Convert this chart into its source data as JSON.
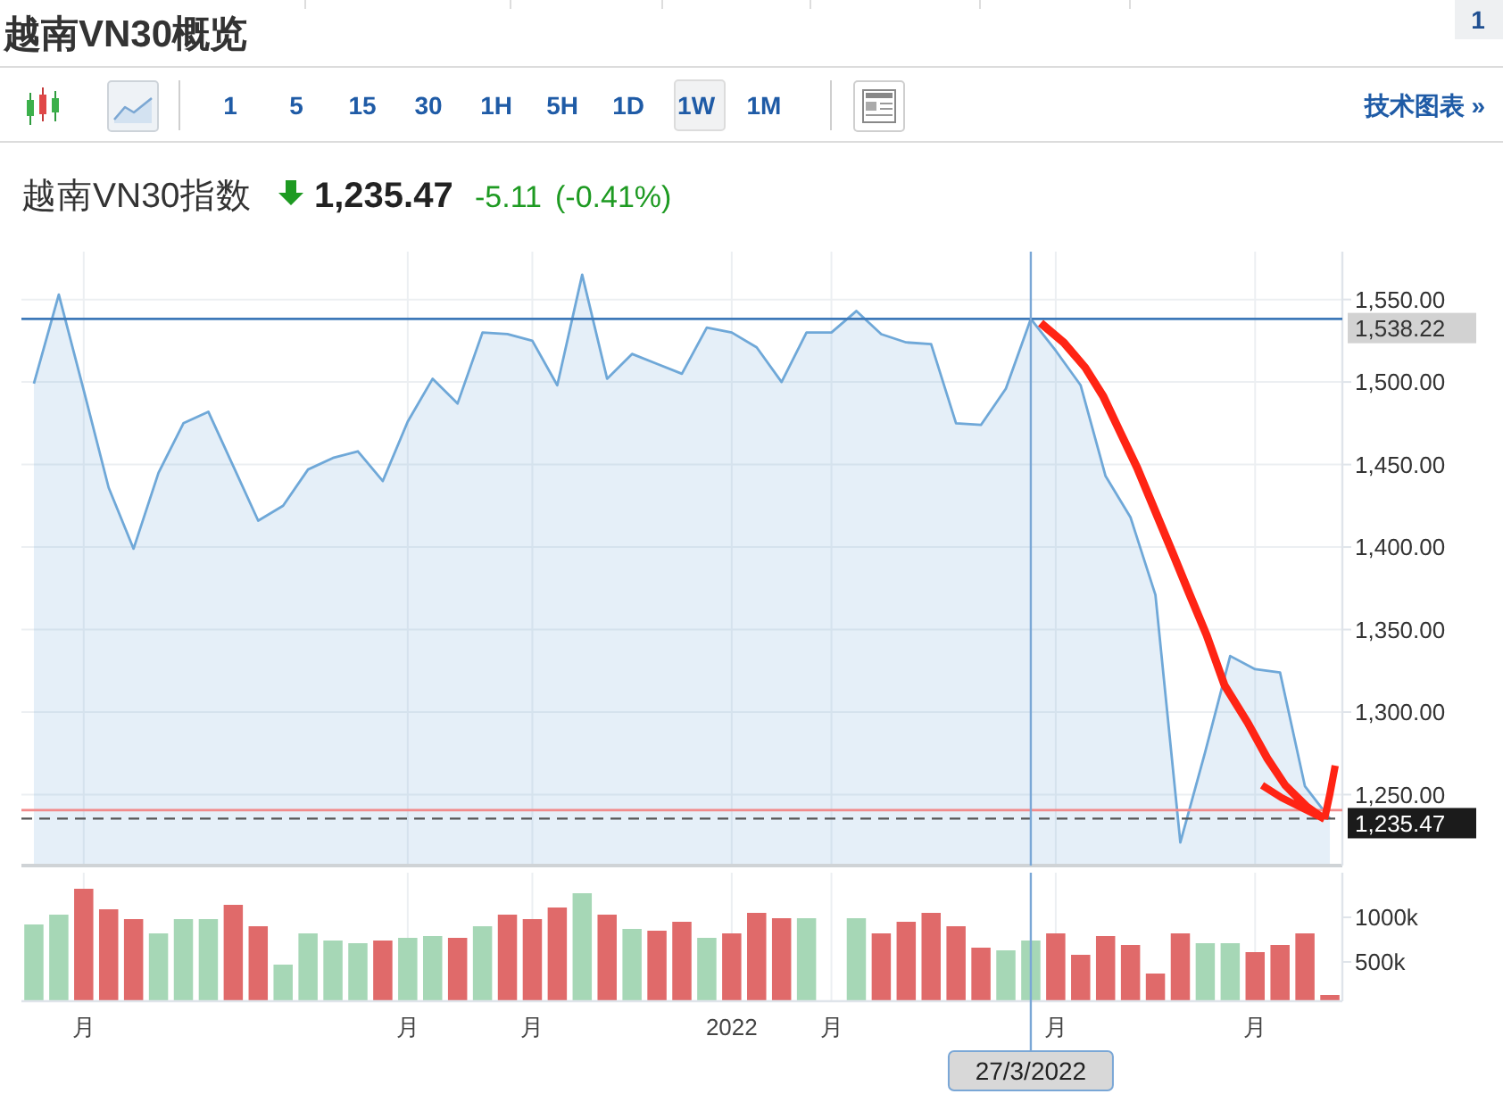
{
  "chart_data": [
    {
      "type": "area",
      "title": "越南VN30概览",
      "subtitle": "越南VN30指数",
      "annotations": [
        "1",
        "1 5 15 30 1H 5H 1D 1W 1M",
        "技术图表 »",
        "1,235.47",
        "-5.11",
        "(-0.41%)"
      ],
      "categories": [
        null,
        null,
        "月",
        null,
        null,
        null,
        null,
        null,
        null,
        null,
        null,
        null,
        null,
        null,
        null,
        "月",
        null,
        null,
        null,
        null,
        "月",
        null,
        null,
        null,
        null,
        null,
        null,
        null,
        "2022",
        null,
        null,
        null,
        "月",
        null,
        null,
        null,
        null,
        null,
        null,
        null,
        "27/3/2022",
        "月",
        null,
        null,
        null,
        null,
        null,
        null,
        null,
        "月",
        null,
        null,
        null
      ],
      "values": [
        1499,
        1553,
        1495,
        1436,
        1399,
        1445,
        1475,
        1482,
        1449,
        1416,
        1425,
        1447,
        1454,
        1458,
        1440,
        1476,
        1502,
        1487,
        1530,
        1529,
        1525,
        1498,
        1565,
        1502,
        1517,
        1511,
        1505,
        1533,
        1530,
        1521,
        1500,
        1530,
        1530,
        1543,
        1529,
        1524,
        1523,
        1475,
        1474,
        1496,
        1538.22,
        1519,
        1498,
        1443,
        1418,
        1371,
        1221,
        1276,
        1334,
        1326,
        1324,
        1255,
        1235.47
      ],
      "color": "#6fa8d8",
      "ylim": [
        1207,
        1579
      ],
      "yticks": [
        {
          "value": 1250,
          "label": "1,250.00"
        },
        {
          "value": 1300,
          "label": "1,300.00"
        },
        {
          "value": 1350,
          "label": "1,350.00"
        },
        {
          "value": 1400,
          "label": "1,400.00"
        },
        {
          "value": 1450,
          "label": "1,450.00"
        },
        {
          "value": 1500,
          "label": "1,500.00"
        },
        {
          "value": 1550,
          "label": "1,550.00"
        }
      ],
      "grid": true,
      "tick_labels": "y",
      "ref_lines": [
        {
          "axis": "y",
          "value": 1538.22,
          "label": "1,538.22",
          "color": "#3d78b8"
        },
        {
          "axis": "y",
          "value": 1240.58,
          "color": "#f28b8b"
        },
        {
          "axis": "y",
          "value": 1235.47,
          "label": "1,235.47",
          "color": "#555555",
          "line_style": "dashed"
        },
        {
          "axis": "x",
          "value": "27/3/2022",
          "color": "#7aa7d6"
        }
      ]
    },
    {
      "type": "bar",
      "categories": [
        null,
        null,
        "月",
        null,
        null,
        null,
        null,
        null,
        null,
        null,
        null,
        null,
        null,
        null,
        null,
        "月",
        null,
        null,
        null,
        null,
        "月",
        null,
        null,
        null,
        null,
        null,
        null,
        null,
        "2022",
        null,
        null,
        null,
        "月",
        null,
        null,
        null,
        null,
        null,
        null,
        null,
        "27/3/2022",
        "月",
        null,
        null,
        null,
        null,
        null,
        null,
        null,
        "月",
        null,
        null,
        null
      ],
      "values": [
        920000,
        1030000,
        1320000,
        1090000,
        980000,
        820000,
        980000,
        980000,
        1140000,
        900000,
        470000,
        820000,
        740000,
        710000,
        740000,
        770000,
        790000,
        770000,
        900000,
        1030000,
        980000,
        1110000,
        1270000,
        1030000,
        870000,
        850000,
        950000,
        770000,
        820000,
        1050000,
        990000,
        990000,
        null,
        990000,
        820000,
        950000,
        1050000,
        900000,
        660000,
        630000,
        740000,
        820000,
        580000,
        790000,
        690000,
        370000,
        820000,
        710000,
        710000,
        610000,
        690000,
        820000,
        130000
      ],
      "colors": [
        "#a6d7b6",
        "#a6d7b6",
        "#e06a6a",
        "#e06a6a",
        "#e06a6a",
        "#a6d7b6",
        "#a6d7b6",
        "#a6d7b6",
        "#e06a6a",
        "#e06a6a",
        "#a6d7b6",
        "#a6d7b6",
        "#a6d7b6",
        "#a6d7b6",
        "#e06a6a",
        "#a6d7b6",
        "#a6d7b6",
        "#e06a6a",
        "#a6d7b6",
        "#e06a6a",
        "#e06a6a",
        "#e06a6a",
        "#a6d7b6",
        "#e06a6a",
        "#a6d7b6",
        "#e06a6a",
        "#e06a6a",
        "#a6d7b6",
        "#e06a6a",
        "#e06a6a",
        "#e06a6a",
        "#a6d7b6",
        null,
        "#a6d7b6",
        "#e06a6a",
        "#e06a6a",
        "#e06a6a",
        "#e06a6a",
        "#e06a6a",
        "#a6d7b6",
        "#a6d7b6",
        "#e06a6a",
        "#e06a6a",
        "#e06a6a",
        "#e06a6a",
        "#e06a6a",
        "#e06a6a",
        "#a6d7b6",
        "#a6d7b6",
        "#e06a6a",
        "#e06a6a",
        "#e06a6a",
        "#e06a6a"
      ],
      "ylim": [
        60000,
        1500000
      ],
      "yticks": [
        {
          "value": 500000,
          "label": "500k"
        },
        {
          "value": 1000000,
          "label": "1000k"
        }
      ],
      "grid": "x",
      "ref_lines": [
        {
          "axis": "x",
          "value": "27/3/2022",
          "color": "#7aa7d6"
        }
      ]
    }
  ]
}
